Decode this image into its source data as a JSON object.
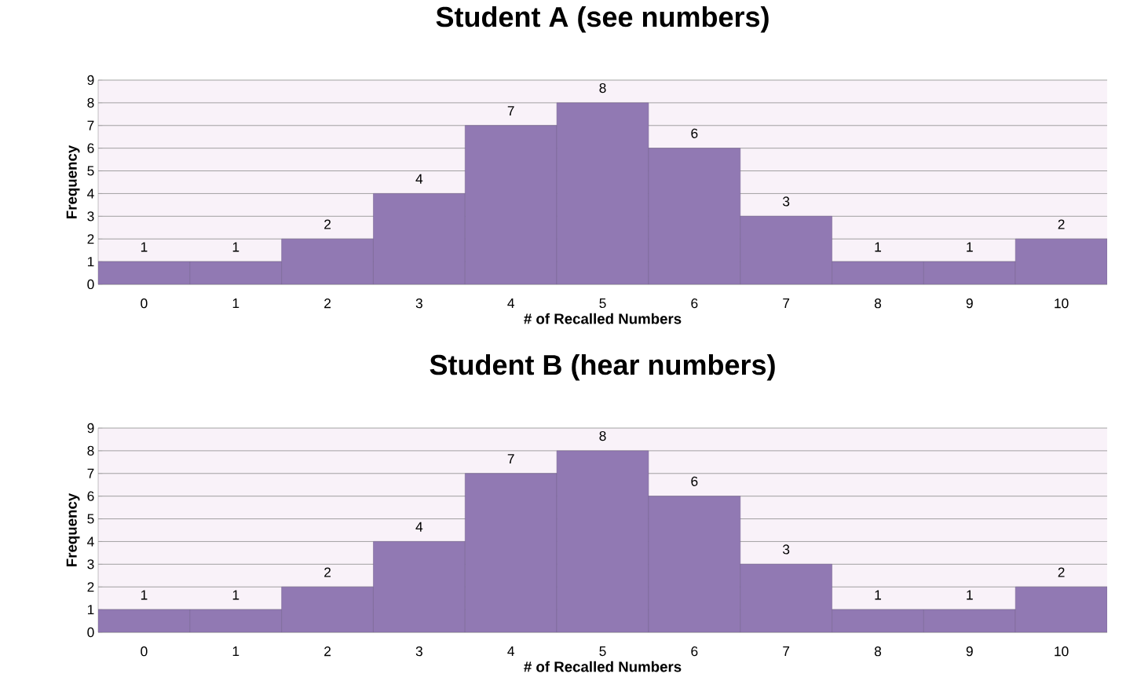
{
  "chart_data": [
    {
      "type": "bar",
      "title": "Student A (see numbers)",
      "xlabel": "# of Recalled Numbers",
      "ylabel": "Frequency",
      "categories": [
        "0",
        "1",
        "2",
        "3",
        "4",
        "5",
        "6",
        "7",
        "8",
        "9",
        "10"
      ],
      "values": [
        1,
        1,
        2,
        4,
        7,
        8,
        6,
        3,
        1,
        1,
        2
      ],
      "color": "#9179b3",
      "ylim": [
        0,
        9
      ],
      "yticks": [
        0,
        1,
        2,
        3,
        4,
        5,
        6,
        7,
        8,
        9
      ],
      "grid": "y",
      "data_labels": true
    },
    {
      "type": "bar",
      "title": "Student B (hear numbers)",
      "xlabel": "# of Recalled Numbers",
      "ylabel": "Frequency",
      "categories": [
        "0",
        "1",
        "2",
        "3",
        "4",
        "5",
        "6",
        "7",
        "8",
        "9",
        "10"
      ],
      "values": [
        1,
        1,
        2,
        4,
        7,
        8,
        6,
        3,
        1,
        1,
        2
      ],
      "color": "#9179b3",
      "ylim": [
        0,
        9
      ],
      "yticks": [
        0,
        1,
        2,
        3,
        4,
        5,
        6,
        7,
        8,
        9
      ],
      "grid": "y",
      "data_labels": true
    }
  ]
}
